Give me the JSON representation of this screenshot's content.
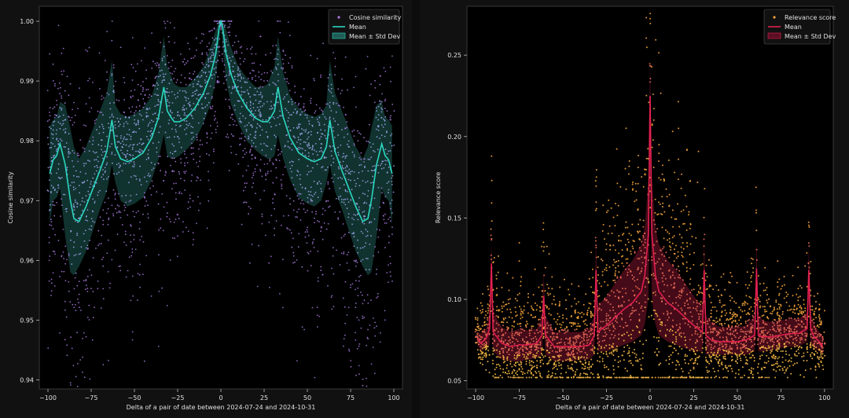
{
  "chart_data": [
    {
      "type": "scatter",
      "title": "",
      "xlabel": "Delta of a pair of date between 2024-07-24 and 2024-10-31",
      "ylabel": "Cosine similarity",
      "xlim": [
        -105,
        105
      ],
      "ylim": [
        0.9385,
        1.0025
      ],
      "xticks": [
        -100,
        -75,
        -50,
        -25,
        0,
        25,
        50,
        75,
        100
      ],
      "yticks": [
        0.94,
        0.95,
        0.96,
        0.97,
        0.98,
        0.99,
        1.0
      ],
      "ytick_labels": [
        "0.94",
        "0.95",
        "0.96",
        "0.97",
        "0.98",
        "0.99",
        "1.00"
      ],
      "legend": {
        "position": "top-right",
        "entries": [
          "Cosine similarity",
          "Mean",
          "Mean ± Std Dev"
        ]
      },
      "series": [
        {
          "name": "Mean",
          "kind": "line",
          "color": "#2ad7c0",
          "x": [
            -99,
            -97,
            -95,
            -93,
            -90,
            -87,
            -85,
            -82,
            -78,
            -74,
            -70,
            -66,
            -63,
            -61,
            -58,
            -54,
            -50,
            -45,
            -40,
            -36,
            -33,
            -31,
            -29,
            -27,
            -24,
            -20,
            -15,
            -10,
            -6,
            -3,
            -1,
            0,
            1,
            3,
            6,
            10,
            15,
            20,
            24,
            27,
            29,
            31,
            33,
            36,
            40,
            45,
            50,
            54,
            58,
            61,
            63,
            66,
            70,
            74,
            78,
            82,
            85,
            87,
            90,
            93,
            95,
            97,
            99
          ],
          "y": [
            0.9745,
            0.9768,
            0.9775,
            0.9795,
            0.976,
            0.97,
            0.967,
            0.9665,
            0.969,
            0.972,
            0.975,
            0.9782,
            0.9835,
            0.979,
            0.977,
            0.9765,
            0.977,
            0.978,
            0.9805,
            0.984,
            0.989,
            0.985,
            0.984,
            0.9832,
            0.9832,
            0.9838,
            0.9855,
            0.988,
            0.991,
            0.9945,
            0.999,
            1.0,
            0.999,
            0.9945,
            0.991,
            0.988,
            0.9855,
            0.9838,
            0.9832,
            0.9832,
            0.984,
            0.985,
            0.989,
            0.984,
            0.9805,
            0.978,
            0.977,
            0.9765,
            0.977,
            0.979,
            0.9835,
            0.9782,
            0.975,
            0.972,
            0.969,
            0.9665,
            0.967,
            0.97,
            0.976,
            0.9795,
            0.9775,
            0.9768,
            0.9745
          ]
        },
        {
          "name": "Mean ± Std Dev",
          "kind": "band",
          "color": "#1f5c55",
          "x": [
            -99,
            -97,
            -95,
            -93,
            -90,
            -87,
            -85,
            -82,
            -78,
            -74,
            -70,
            -66,
            -63,
            -61,
            -58,
            -54,
            -50,
            -45,
            -40,
            -36,
            -33,
            -31,
            -29,
            -27,
            -24,
            -20,
            -15,
            -10,
            -6,
            -3,
            -1,
            0,
            1,
            3,
            6,
            10,
            15,
            20,
            24,
            27,
            29,
            31,
            33,
            36,
            40,
            45,
            50,
            54,
            58,
            61,
            63,
            66,
            70,
            74,
            78,
            82,
            85,
            87,
            90,
            93,
            95,
            97,
            99
          ],
          "lower": [
            0.966,
            0.97,
            0.9705,
            0.972,
            0.964,
            0.958,
            0.9575,
            0.959,
            0.9615,
            0.965,
            0.9685,
            0.9715,
            0.976,
            0.973,
            0.97,
            0.969,
            0.9695,
            0.9705,
            0.9735,
            0.977,
            0.981,
            0.9775,
            0.977,
            0.977,
            0.9775,
            0.9785,
            0.98,
            0.983,
            0.986,
            0.99,
            0.996,
            0.999,
            0.996,
            0.99,
            0.986,
            0.983,
            0.98,
            0.9785,
            0.9775,
            0.977,
            0.977,
            0.9775,
            0.981,
            0.977,
            0.9735,
            0.9705,
            0.9695,
            0.969,
            0.97,
            0.973,
            0.976,
            0.9715,
            0.9685,
            0.965,
            0.9615,
            0.959,
            0.9575,
            0.958,
            0.964,
            0.972,
            0.9705,
            0.97,
            0.966
          ],
          "upper": [
            0.9825,
            0.9835,
            0.984,
            0.9865,
            0.986,
            0.982,
            0.979,
            0.977,
            0.979,
            0.982,
            0.985,
            0.988,
            0.9935,
            0.986,
            0.9845,
            0.984,
            0.9845,
            0.9855,
            0.9875,
            0.9915,
            0.9975,
            0.9925,
            0.991,
            0.9895,
            0.989,
            0.989,
            0.9905,
            0.9925,
            0.9955,
            0.9985,
            1.0,
            1.0,
            1.0,
            0.9985,
            0.9955,
            0.9925,
            0.9905,
            0.989,
            0.989,
            0.9895,
            0.991,
            0.9925,
            0.9975,
            0.9915,
            0.9875,
            0.9855,
            0.9845,
            0.984,
            0.9845,
            0.986,
            0.9935,
            0.988,
            0.985,
            0.982,
            0.979,
            0.977,
            0.979,
            0.982,
            0.986,
            0.9865,
            0.984,
            0.9835,
            0.9825
          ]
        },
        {
          "name": "Cosine similarity",
          "kind": "scatter",
          "color": "#a97be0",
          "point_count": 2600
        }
      ]
    },
    {
      "type": "scatter",
      "title": "",
      "xlabel": "Delta of a pair of date between 2024-07-24 and 2024-10-31",
      "ylabel": "Relevance score",
      "xlim": [
        -105,
        105
      ],
      "ylim": [
        0.045,
        0.28
      ],
      "xticks": [
        -100,
        -75,
        -50,
        -25,
        0,
        25,
        50,
        75,
        100
      ],
      "yticks": [
        0.05,
        0.1,
        0.15,
        0.2,
        0.25
      ],
      "ytick_labels": [
        "0.05",
        "0.10",
        "0.15",
        "0.20",
        "0.25"
      ],
      "legend": {
        "position": "top-right",
        "entries": [
          "Relevance score",
          "Mean",
          "Mean ± Std Dev"
        ]
      },
      "series": [
        {
          "name": "Mean",
          "kind": "line",
          "color": "#e01f4f",
          "x": [
            -99,
            -97,
            -94,
            -92,
            -91,
            -90,
            -85,
            -80,
            -75,
            -70,
            -65,
            -62,
            -61,
            -60,
            -55,
            -50,
            -45,
            -40,
            -35,
            -32,
            -31,
            -30,
            -25,
            -20,
            -15,
            -10,
            -5,
            -3,
            -1,
            0,
            1,
            3,
            5,
            10,
            15,
            20,
            25,
            30,
            31,
            32,
            35,
            40,
            45,
            50,
            55,
            60,
            61,
            62,
            65,
            70,
            75,
            80,
            85,
            90,
            91,
            92,
            94,
            97,
            99
          ],
          "y": [
            0.076,
            0.073,
            0.076,
            0.082,
            0.122,
            0.08,
            0.073,
            0.071,
            0.072,
            0.072,
            0.073,
            0.078,
            0.102,
            0.078,
            0.071,
            0.071,
            0.071,
            0.071,
            0.072,
            0.078,
            0.118,
            0.08,
            0.084,
            0.089,
            0.094,
            0.098,
            0.105,
            0.115,
            0.14,
            0.225,
            0.14,
            0.115,
            0.105,
            0.098,
            0.094,
            0.089,
            0.084,
            0.08,
            0.118,
            0.078,
            0.075,
            0.074,
            0.074,
            0.074,
            0.075,
            0.078,
            0.119,
            0.078,
            0.077,
            0.077,
            0.078,
            0.079,
            0.079,
            0.082,
            0.118,
            0.082,
            0.077,
            0.074,
            0.071
          ]
        },
        {
          "name": "Mean ± Std Dev",
          "kind": "band",
          "color": "#5c0f22",
          "x": [
            -99,
            -97,
            -94,
            -92,
            -91,
            -90,
            -85,
            -80,
            -75,
            -70,
            -65,
            -62,
            -61,
            -60,
            -55,
            -50,
            -45,
            -40,
            -35,
            -32,
            -31,
            -30,
            -25,
            -20,
            -15,
            -10,
            -5,
            -3,
            -1,
            0,
            1,
            3,
            5,
            10,
            15,
            20,
            25,
            30,
            31,
            32,
            35,
            40,
            45,
            50,
            55,
            60,
            61,
            62,
            65,
            70,
            75,
            80,
            85,
            90,
            91,
            92,
            94,
            97,
            99
          ],
          "lower": [
            0.072,
            0.068,
            0.07,
            0.072,
            0.1,
            0.068,
            0.063,
            0.062,
            0.062,
            0.063,
            0.064,
            0.066,
            0.085,
            0.066,
            0.062,
            0.062,
            0.062,
            0.063,
            0.063,
            0.066,
            0.098,
            0.068,
            0.068,
            0.07,
            0.072,
            0.074,
            0.078,
            0.085,
            0.1,
            0.18,
            0.1,
            0.085,
            0.078,
            0.074,
            0.072,
            0.07,
            0.068,
            0.068,
            0.098,
            0.066,
            0.066,
            0.066,
            0.066,
            0.066,
            0.066,
            0.068,
            0.1,
            0.068,
            0.068,
            0.069,
            0.07,
            0.071,
            0.071,
            0.074,
            0.1,
            0.072,
            0.07,
            0.068,
            0.066
          ],
          "upper": [
            0.08,
            0.079,
            0.082,
            0.092,
            0.135,
            0.092,
            0.083,
            0.08,
            0.082,
            0.081,
            0.082,
            0.09,
            0.116,
            0.09,
            0.08,
            0.08,
            0.08,
            0.08,
            0.082,
            0.09,
            0.136,
            0.096,
            0.102,
            0.11,
            0.118,
            0.124,
            0.134,
            0.145,
            0.175,
            0.245,
            0.175,
            0.145,
            0.134,
            0.124,
            0.118,
            0.11,
            0.102,
            0.096,
            0.136,
            0.09,
            0.086,
            0.083,
            0.083,
            0.083,
            0.084,
            0.09,
            0.136,
            0.09,
            0.087,
            0.086,
            0.087,
            0.088,
            0.088,
            0.092,
            0.133,
            0.092,
            0.085,
            0.08,
            0.077
          ]
        },
        {
          "name": "Relevance score",
          "kind": "scatter",
          "color": "#f0a040",
          "point_count": 3200
        }
      ]
    }
  ]
}
